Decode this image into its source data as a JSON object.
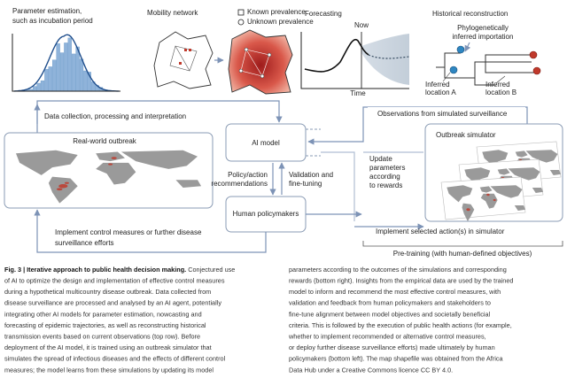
{
  "panels": {
    "parameter_estimation": {
      "title_lines": [
        "Parameter estimation,",
        "such as incubation period"
      ]
    },
    "mobility_network": {
      "title": "Mobility network",
      "legend": [
        "Known prevalence",
        "Unknown prevalence"
      ]
    },
    "forecasting": {
      "title": "Forecasting",
      "now": "Now",
      "x_label": "Time"
    },
    "historical_reconstruction": {
      "title": "Historical reconstruction",
      "annotation_lines": [
        "Phylogenetically",
        "inferred importation"
      ],
      "location_a_lines": [
        "Inferred",
        "location A"
      ],
      "location_b_lines": [
        "Inferred",
        "location B"
      ]
    }
  },
  "flow": {
    "data_collection": "Data collection, processing and interpretation",
    "real_world": "Real-world outbreak",
    "ai_model": "AI model",
    "human_policymakers": "Human policymakers",
    "policy_lines": [
      "Policy/action",
      "recommendations"
    ],
    "validation_lines": [
      "Validation and",
      "fine-tuning"
    ],
    "observations": "Observations from simulated surveillance",
    "update_lines": [
      "Update",
      "parameters",
      "according",
      "to rewards"
    ],
    "outbreak_simulator": "Outbreak simulator",
    "implement_simulator": "Implement selected action(s) in simulator",
    "pre_training": "Pre-training (with human-defined objectives)",
    "implement_lines": [
      "Implement control measures or further disease",
      "surveillance efforts"
    ]
  },
  "caption": {
    "label": "Fig. 3 |",
    "title": "Iterative approach to public health decision making.",
    "left_lines": [
      "Conjectured use",
      "of AI to optimize the design and implementation of effective control measures",
      "during a hypothetical multicountry disease outbreak. Data collected from",
      "disease surveillance are processed and analysed by an AI agent, potentially",
      "integrating other AI models for parameter estimation, nowcasting and",
      "forecasting of epidemic trajectories, as well as reconstructing historical",
      "transmission events based on current observations (top row). Before",
      "deployment of the AI model, it is trained using an outbreak simulator that",
      "simulates the spread of infectious diseases and the effects of different control",
      "measures; the model learns from these simulations by updating its model"
    ],
    "right_lines": [
      "parameters according to the outcomes of the simulations and corresponding",
      "rewards (bottom right). Insights from the empirical data are used by the trained",
      "model to inform and recommend the most effective control measures, with",
      "validation and feedback from human policymakers and stakeholders to",
      "fine-tune alignment between model objectives and societally beneficial",
      "criteria. This is followed by the execution of public health actions (for example,",
      "whether to implement recommended or alternative control measures,",
      "or deploy further disease surveillance efforts) made ultimately by human",
      "policymakers (bottom left). The map shapefile was obtained from the Africa",
      "Data Hub under a Creative Commons licence CC BY 4.0."
    ]
  }
}
